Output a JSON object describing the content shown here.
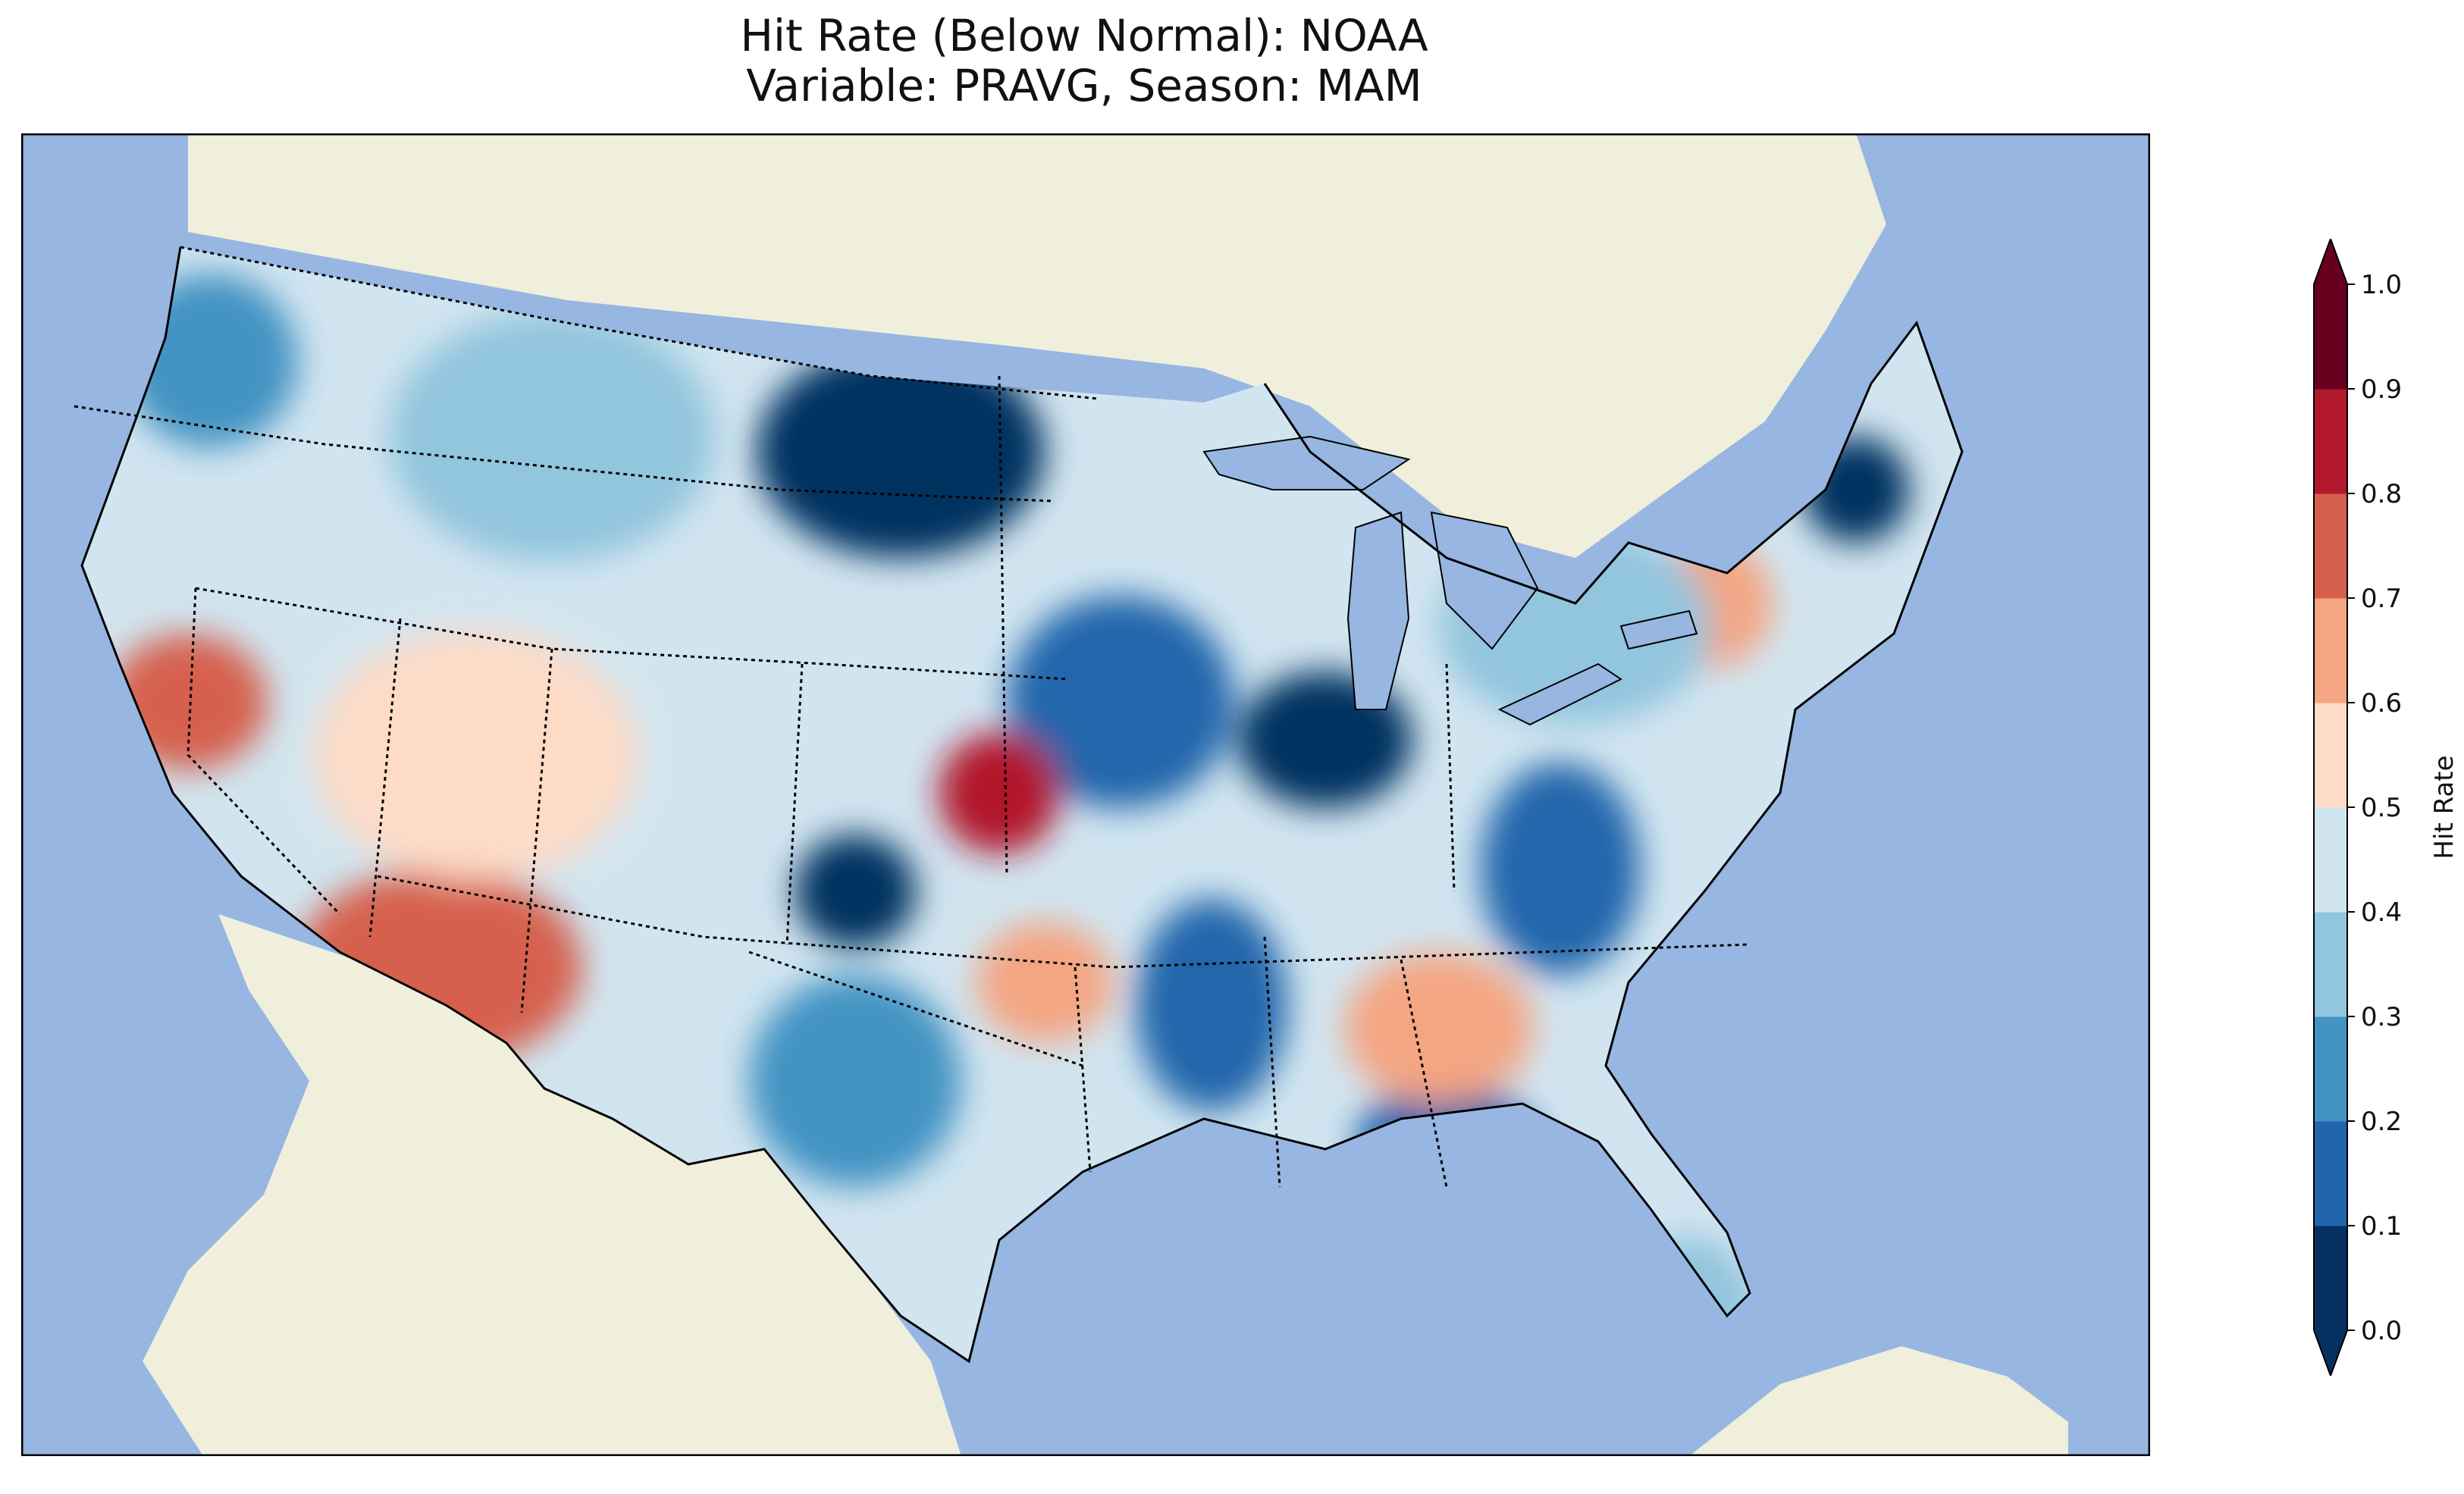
{
  "title": {
    "line1": "Hit Rate (Below Normal): NOAA",
    "line2": "Variable: PRAVG, Season: MAM"
  },
  "colorbar": {
    "label": "Hit Rate",
    "ticks": [
      "0.0",
      "0.1",
      "0.2",
      "0.3",
      "0.4",
      "0.5",
      "0.6",
      "0.7",
      "0.8",
      "0.9",
      "1.0"
    ],
    "colors": [
      "#053061",
      "#2166ac",
      "#4393c3",
      "#92c5de",
      "#d1e5f0",
      "#fddbc7",
      "#f4a582",
      "#d6604d",
      "#b2182b",
      "#67001f"
    ],
    "extend": "both"
  },
  "map": {
    "ocean_color": "#97b6e1",
    "land_color": "#efefdb",
    "regions": [
      {
        "name": "northern-plains-dakotas",
        "value": 0.05
      },
      {
        "name": "great-lakes-indiana-ohio",
        "value": 0.08
      },
      {
        "name": "new-england-coast",
        "value": 0.08
      },
      {
        "name": "central-plains-missouri",
        "value": 0.18
      },
      {
        "name": "oklahoma-texas-panhandle",
        "value": 0.08
      },
      {
        "name": "lower-mississippi",
        "value": 0.12
      },
      {
        "name": "appalachians-carolinas",
        "value": 0.15
      },
      {
        "name": "gulf-coast-florida-panhandle",
        "value": 0.1
      },
      {
        "name": "pacific-northwest-coast",
        "value": 0.25
      },
      {
        "name": "northern-rockies",
        "value": 0.3
      },
      {
        "name": "west-texas",
        "value": 0.28
      },
      {
        "name": "california-central-valley",
        "value": 0.72
      },
      {
        "name": "arizona-new-mexico",
        "value": 0.7
      },
      {
        "name": "nevada-utah",
        "value": 0.55
      },
      {
        "name": "alabama-georgia",
        "value": 0.68
      },
      {
        "name": "kansas",
        "value": 0.8
      },
      {
        "name": "east-texas-oklahoma",
        "value": 0.65
      },
      {
        "name": "virginia-piedmont",
        "value": 0.62
      },
      {
        "name": "central-florida",
        "value": 0.35
      },
      {
        "name": "new-york-pennsylvania",
        "value": 0.32
      }
    ]
  }
}
